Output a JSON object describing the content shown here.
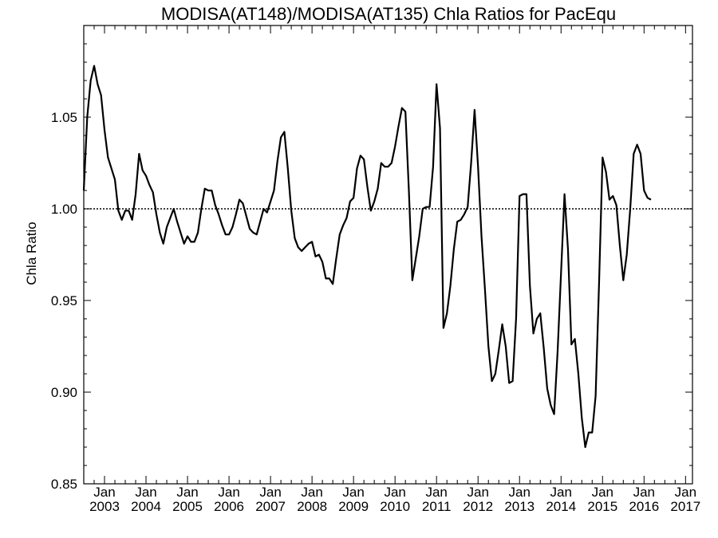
{
  "chart_data": {
    "type": "line",
    "title": "MODISA(AT148)/MODISA(AT135)  Chla Ratios for PacEqu",
    "xlabel": "",
    "ylabel": "Chla Ratio",
    "ylim": [
      0.85,
      1.1
    ],
    "xlim": [
      "2002-07",
      "2017-03"
    ],
    "grid": false,
    "reference_line": 1.0,
    "y_ticks": [
      0.85,
      0.9,
      0.95,
      1.0,
      1.05
    ],
    "y_tick_labels": [
      "0.85",
      "0.90",
      "0.95",
      "1.00",
      "1.05"
    ],
    "x_ticks": [
      {
        "month": "Jan",
        "year": "2003",
        "date": "2003-01"
      },
      {
        "month": "Jan",
        "year": "2004",
        "date": "2004-01"
      },
      {
        "month": "Jan",
        "year": "2005",
        "date": "2005-01"
      },
      {
        "month": "Jan",
        "year": "2006",
        "date": "2006-01"
      },
      {
        "month": "Jan",
        "year": "2007",
        "date": "2007-01"
      },
      {
        "month": "Jan",
        "year": "2008",
        "date": "2008-01"
      },
      {
        "month": "Jan",
        "year": "2009",
        "date": "2009-01"
      },
      {
        "month": "Jan",
        "year": "2010",
        "date": "2010-01"
      },
      {
        "month": "Jan",
        "year": "2011",
        "date": "2011-01"
      },
      {
        "month": "Jan",
        "year": "2012",
        "date": "2012-01"
      },
      {
        "month": "Jan",
        "year": "2013",
        "date": "2013-01"
      },
      {
        "month": "Jan",
        "year": "2014",
        "date": "2014-01"
      },
      {
        "month": "Jan",
        "year": "2015",
        "date": "2015-01"
      },
      {
        "month": "Jan",
        "year": "2016",
        "date": "2016-01"
      },
      {
        "month": "Jan",
        "year": "2017",
        "date": "2017-01"
      }
    ],
    "series": [
      {
        "color": "#000000",
        "points": [
          [
            "2002-07",
            1.01
          ],
          [
            "2002-08",
            1.05
          ],
          [
            "2002-09",
            1.07
          ],
          [
            "2002-10",
            1.078
          ],
          [
            "2002-11",
            1.068
          ],
          [
            "2002-12",
            1.062
          ],
          [
            "2003-01",
            1.043
          ],
          [
            "2003-02",
            1.028
          ],
          [
            "2003-03",
            1.022
          ],
          [
            "2003-04",
            1.016
          ],
          [
            "2003-05",
            0.999
          ],
          [
            "2003-06",
            0.994
          ],
          [
            "2003-07",
            0.999
          ],
          [
            "2003-08",
            0.999
          ],
          [
            "2003-09",
            0.994
          ],
          [
            "2003-10",
            1.008
          ],
          [
            "2003-11",
            1.03
          ],
          [
            "2003-12",
            1.021
          ],
          [
            "2004-01",
            1.018
          ],
          [
            "2004-02",
            1.013
          ],
          [
            "2004-03",
            1.009
          ],
          [
            "2004-04",
            0.997
          ],
          [
            "2004-05",
            0.987
          ],
          [
            "2004-06",
            0.981
          ],
          [
            "2004-07",
            0.99
          ],
          [
            "2004-08",
            0.995
          ],
          [
            "2004-09",
            1.0
          ],
          [
            "2004-10",
            0.993
          ],
          [
            "2004-11",
            0.987
          ],
          [
            "2004-12",
            0.981
          ],
          [
            "2005-01",
            0.985
          ],
          [
            "2005-02",
            0.982
          ],
          [
            "2005-03",
            0.982
          ],
          [
            "2005-04",
            0.987
          ],
          [
            "2005-05",
            1.0
          ],
          [
            "2005-06",
            1.011
          ],
          [
            "2005-07",
            1.01
          ],
          [
            "2005-08",
            1.01
          ],
          [
            "2005-09",
            1.002
          ],
          [
            "2005-10",
            0.997
          ],
          [
            "2005-11",
            0.991
          ],
          [
            "2005-12",
            0.986
          ],
          [
            "2006-01",
            0.986
          ],
          [
            "2006-02",
            0.99
          ],
          [
            "2006-03",
            0.997
          ],
          [
            "2006-04",
            1.005
          ],
          [
            "2006-05",
            1.003
          ],
          [
            "2006-06",
            0.996
          ],
          [
            "2006-07",
            0.989
          ],
          [
            "2006-08",
            0.987
          ],
          [
            "2006-09",
            0.986
          ],
          [
            "2006-10",
            0.993
          ],
          [
            "2006-11",
            1.0
          ],
          [
            "2006-12",
            0.998
          ],
          [
            "2007-01",
            1.004
          ],
          [
            "2007-02",
            1.01
          ],
          [
            "2007-03",
            1.026
          ],
          [
            "2007-04",
            1.039
          ],
          [
            "2007-05",
            1.042
          ],
          [
            "2007-06",
            1.022
          ],
          [
            "2007-07",
            0.999
          ],
          [
            "2007-08",
            0.984
          ],
          [
            "2007-09",
            0.979
          ],
          [
            "2007-10",
            0.977
          ],
          [
            "2007-11",
            0.979
          ],
          [
            "2007-12",
            0.981
          ],
          [
            "2008-01",
            0.982
          ],
          [
            "2008-02",
            0.974
          ],
          [
            "2008-03",
            0.975
          ],
          [
            "2008-04",
            0.971
          ],
          [
            "2008-05",
            0.962
          ],
          [
            "2008-06",
            0.962
          ],
          [
            "2008-07",
            0.959
          ],
          [
            "2008-08",
            0.973
          ],
          [
            "2008-09",
            0.986
          ],
          [
            "2008-10",
            0.991
          ],
          [
            "2008-11",
            0.995
          ],
          [
            "2008-12",
            1.004
          ],
          [
            "2009-01",
            1.006
          ],
          [
            "2009-02",
            1.022
          ],
          [
            "2009-03",
            1.029
          ],
          [
            "2009-04",
            1.027
          ],
          [
            "2009-05",
            1.012
          ],
          [
            "2009-06",
            0.999
          ],
          [
            "2009-07",
            1.004
          ],
          [
            "2009-08",
            1.011
          ],
          [
            "2009-09",
            1.025
          ],
          [
            "2009-10",
            1.023
          ],
          [
            "2009-11",
            1.023
          ],
          [
            "2009-12",
            1.025
          ],
          [
            "2010-01",
            1.034
          ],
          [
            "2010-02",
            1.045
          ],
          [
            "2010-03",
            1.055
          ],
          [
            "2010-04",
            1.053
          ],
          [
            "2010-05",
            1.01
          ],
          [
            "2010-06",
            0.961
          ],
          [
            "2010-07",
            0.973
          ],
          [
            "2010-08",
            0.985
          ],
          [
            "2010-09",
            1.0
          ],
          [
            "2010-10",
            1.001
          ],
          [
            "2010-11",
            1.001
          ],
          [
            "2010-12",
            1.023
          ],
          [
            "2011-01",
            1.068
          ],
          [
            "2011-02",
            1.044
          ],
          [
            "2011-03",
            0.935
          ],
          [
            "2011-04",
            0.943
          ],
          [
            "2011-05",
            0.958
          ],
          [
            "2011-06",
            0.978
          ],
          [
            "2011-07",
            0.993
          ],
          [
            "2011-08",
            0.994
          ],
          [
            "2011-09",
            0.997
          ],
          [
            "2011-10",
            1.001
          ],
          [
            "2011-11",
            1.025
          ],
          [
            "2011-12",
            1.054
          ],
          [
            "2012-01",
            1.023
          ],
          [
            "2012-02",
            0.985
          ],
          [
            "2012-03",
            0.956
          ],
          [
            "2012-04",
            0.925
          ],
          [
            "2012-05",
            0.906
          ],
          [
            "2012-06",
            0.91
          ],
          [
            "2012-07",
            0.923
          ],
          [
            "2012-08",
            0.937
          ],
          [
            "2012-09",
            0.925
          ],
          [
            "2012-10",
            0.905
          ],
          [
            "2012-11",
            0.906
          ],
          [
            "2012-12",
            0.94
          ],
          [
            "2013-01",
            1.007
          ],
          [
            "2013-02",
            1.008
          ],
          [
            "2013-03",
            1.008
          ],
          [
            "2013-04",
            0.958
          ],
          [
            "2013-05",
            0.932
          ],
          [
            "2013-06",
            0.94
          ],
          [
            "2013-07",
            0.943
          ],
          [
            "2013-08",
            0.924
          ],
          [
            "2013-09",
            0.902
          ],
          [
            "2013-10",
            0.893
          ],
          [
            "2013-11",
            0.888
          ],
          [
            "2013-12",
            0.922
          ],
          [
            "2014-01",
            0.965
          ],
          [
            "2014-02",
            1.008
          ],
          [
            "2014-03",
            0.978
          ],
          [
            "2014-04",
            0.926
          ],
          [
            "2014-05",
            0.929
          ],
          [
            "2014-06",
            0.91
          ],
          [
            "2014-07",
            0.886
          ],
          [
            "2014-08",
            0.87
          ],
          [
            "2014-09",
            0.878
          ],
          [
            "2014-10",
            0.878
          ],
          [
            "2014-11",
            0.898
          ],
          [
            "2014-12",
            0.96
          ],
          [
            "2015-01",
            1.028
          ],
          [
            "2015-02",
            1.02
          ],
          [
            "2015-03",
            1.005
          ],
          [
            "2015-04",
            1.007
          ],
          [
            "2015-05",
            1.002
          ],
          [
            "2015-06",
            0.98
          ],
          [
            "2015-07",
            0.961
          ],
          [
            "2015-08",
            0.975
          ],
          [
            "2015-09",
            1.0
          ],
          [
            "2015-10",
            1.03
          ],
          [
            "2015-11",
            1.035
          ],
          [
            "2015-12",
            1.03
          ],
          [
            "2016-01",
            1.01
          ],
          [
            "2016-02",
            1.006
          ],
          [
            "2016-03",
            1.005
          ]
        ]
      }
    ]
  }
}
